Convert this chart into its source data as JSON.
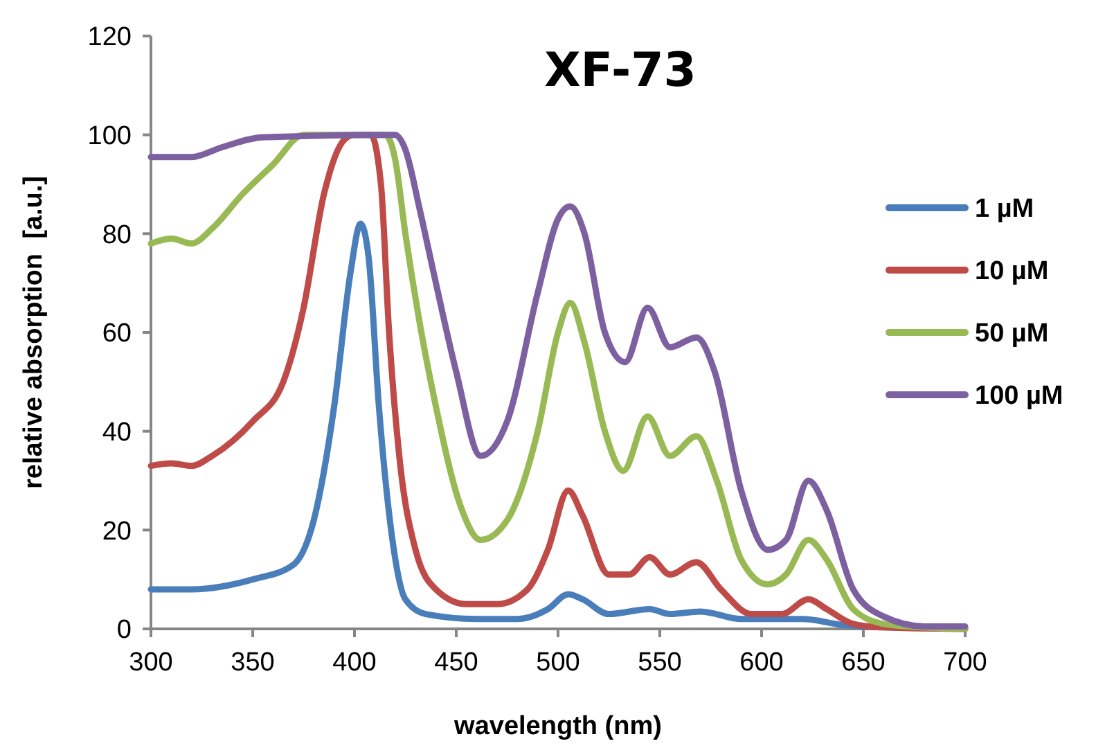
{
  "chart_data": {
    "type": "line",
    "title": "XF-73",
    "xlabel": "wavelength (nm)",
    "ylabel": "relative absorption  [a.u.]",
    "xlim": [
      300,
      700
    ],
    "xticks": [
      300,
      350,
      400,
      450,
      500,
      550,
      600,
      650,
      700
    ],
    "ylim": [
      0,
      120
    ],
    "yticks": [
      0,
      20,
      40,
      60,
      80,
      100,
      120
    ],
    "grid": false,
    "legend": "right",
    "line_style": "solid",
    "series": [
      {
        "name": "1 µM",
        "color": "#4a7ebb",
        "x": [
          300,
          320,
          350,
          370,
          380,
          390,
          398,
          403,
          407,
          412,
          418,
          425,
          435,
          460,
          480,
          495,
          505,
          512,
          525,
          545,
          555,
          570,
          590,
          620,
          640,
          660,
          700
        ],
        "values": [
          8,
          8,
          10,
          13,
          22,
          45,
          72,
          82,
          75,
          45,
          20,
          6,
          3,
          2,
          2,
          4,
          7,
          6,
          3,
          4,
          3,
          3.5,
          2,
          2,
          0.8,
          0.3,
          0
        ]
      },
      {
        "name": "10 µM",
        "color": "#be4b48",
        "x": [
          300,
          310,
          320,
          330,
          350,
          365,
          375,
          385,
          395,
          400,
          408,
          413,
          417,
          422,
          430,
          440,
          455,
          470,
          485,
          495,
          505,
          512,
          525,
          535,
          545,
          555,
          568,
          580,
          595,
          610,
          623,
          632,
          645,
          660,
          700
        ],
        "values": [
          33,
          33.5,
          33,
          35,
          42,
          50,
          65,
          88,
          99,
          100,
          100,
          90,
          60,
          35,
          16,
          8,
          5,
          5,
          8,
          16,
          28,
          23,
          11,
          11,
          14.5,
          11,
          13.5,
          8,
          3,
          3,
          6,
          4,
          1,
          0.3,
          0
        ]
      },
      {
        "name": "50 µM",
        "color": "#98b954",
        "x": [
          300,
          310,
          320,
          330,
          345,
          360,
          375,
          415,
          420,
          425,
          432,
          440,
          452,
          462,
          475,
          490,
          500,
          506,
          513,
          523,
          532,
          544,
          555,
          568,
          578,
          590,
          603,
          612,
          623,
          632,
          645,
          660,
          680,
          700
        ],
        "values": [
          78,
          79,
          78,
          81,
          88,
          94,
          100,
          100,
          95,
          80,
          62,
          45,
          25,
          18,
          22,
          40,
          60,
          66,
          58,
          40,
          32,
          43,
          35,
          39,
          30,
          14,
          9,
          11,
          18,
          14,
          4,
          1,
          0.3,
          0
        ]
      },
      {
        "name": "100 µM",
        "color": "#7d60a0",
        "x": [
          300,
          320,
          335,
          355,
          420,
          425,
          432,
          440,
          450,
          462,
          475,
          490,
          500,
          506,
          513,
          523,
          533,
          544,
          555,
          568,
          577,
          590,
          603,
          612,
          623,
          632,
          645,
          660,
          680,
          700
        ],
        "values": [
          95.5,
          95.5,
          97.5,
          99.5,
          100,
          97,
          85,
          70,
          52,
          35,
          42,
          68,
          83,
          85.5,
          80,
          60,
          54,
          65,
          57,
          59,
          52,
          28,
          16,
          18,
          30,
          24,
          8,
          2.5,
          0.5,
          0.5
        ]
      }
    ]
  }
}
